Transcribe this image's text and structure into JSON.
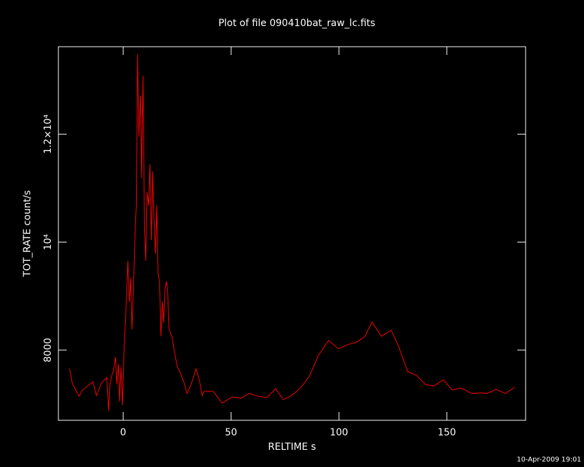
{
  "chart_data": {
    "type": "line",
    "title": "Plot of file 090410bat_raw_lc.fits",
    "x_label": "RELTIME  s",
    "y_label": "TOT_RATE  count/s",
    "footer": "10-Apr-2009 19:01",
    "xlim": [
      -30,
      186.5
    ],
    "ylim": [
      6700,
      13620
    ],
    "xticks": [
      0,
      50,
      100,
      150
    ],
    "yticks": [
      8000,
      {
        "value": 10000,
        "label": "10⁴"
      },
      {
        "value": 12000,
        "label": "1.2×10⁴"
      }
    ],
    "series": [
      {
        "color": "#ff0000",
        "x": [
          -24.8,
          -23.6,
          -20.4,
          -18.8,
          -14.0,
          -12.4,
          -9.9,
          -7.6,
          -6.7,
          -6.1,
          -5.1,
          -4.5,
          -3.5,
          -2.9,
          -2.2,
          -1.6,
          -1.0,
          -0.3,
          0.3,
          1.0,
          1.6,
          2.2,
          2.9,
          3.5,
          4.1,
          4.8,
          5.4,
          6.1,
          6.7,
          7.3,
          8.0,
          8.6,
          9.2,
          9.9,
          10.5,
          11.1,
          11.8,
          12.4,
          13.1,
          13.7,
          14.3,
          15.0,
          15.6,
          16.2,
          16.9,
          17.5,
          18.2,
          18.8,
          19.4,
          20.1,
          20.7,
          21.3,
          22.6,
          24.2,
          25.2,
          26.8,
          28.3,
          29.6,
          31.5,
          33.8,
          35.4,
          36.6,
          37.6,
          41.7,
          45.9,
          50.6,
          54.5,
          58.3,
          62.4,
          66.6,
          70.7,
          74.2,
          78.0,
          82.2,
          86.3,
          90.4,
          95.2,
          99.7,
          104.1,
          108.6,
          112.1,
          115.3,
          119.7,
          124.2,
          127.7,
          131.8,
          136.0,
          140.1,
          144.0,
          148.4,
          152.5,
          156.7,
          161.5,
          165.9,
          168.5,
          172.9,
          177.1,
          181.5
        ],
        "values": [
          7656,
          7388,
          7146,
          7261,
          7414,
          7159,
          7401,
          7490,
          6879,
          7363,
          7554,
          7618,
          7873,
          7363,
          7745,
          7045,
          7682,
          6981,
          7873,
          8510,
          9019,
          9656,
          8892,
          9338,
          8382,
          9147,
          10038,
          10675,
          13478,
          11949,
          12714,
          11185,
          13083,
          10293,
          9656,
          10930,
          10675,
          11440,
          10038,
          11312,
          10420,
          9784,
          10675,
          9401,
          9274,
          8255,
          8892,
          8510,
          9147,
          9274,
          9019,
          8382,
          8255,
          7873,
          7682,
          7554,
          7388,
          7197,
          7363,
          7656,
          7427,
          7159,
          7236,
          7236,
          7019,
          7134,
          7108,
          7197,
          7146,
          7121,
          7287,
          7083,
          7159,
          7299,
          7516,
          7898,
          8178,
          8025,
          8102,
          8153,
          8255,
          8522,
          8255,
          8369,
          8064,
          7605,
          7529,
          7363,
          7337,
          7452,
          7261,
          7299,
          7197,
          7210,
          7197,
          7274,
          7197,
          7312
        ]
      }
    ]
  }
}
